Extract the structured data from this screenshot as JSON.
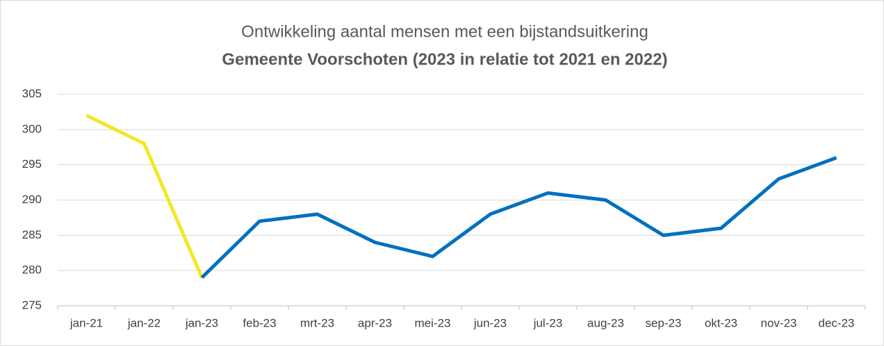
{
  "chart_data": {
    "type": "line",
    "title": "Ontwikkeling aantal mensen met een bijstandsuitkering",
    "subtitle": "Gemeente Voorschoten (2023 in relatie tot 2021 en 2022)",
    "categories": [
      "jan-21",
      "jan-22",
      "jan-23",
      "feb-23",
      "mrt-23",
      "apr-23",
      "mei-23",
      "jun-23",
      "jul-23",
      "aug-23",
      "sep-23",
      "okt-23",
      "nov-23",
      "dec-23"
    ],
    "series": [
      {
        "color": "#f2e825",
        "values": [
          302,
          298,
          279,
          null,
          null,
          null,
          null,
          null,
          null,
          null,
          null,
          null,
          null,
          null
        ]
      },
      {
        "color": "#0070c0",
        "values": [
          null,
          null,
          279,
          287,
          288,
          284,
          282,
          288,
          291,
          290,
          285,
          286,
          293,
          296
        ]
      }
    ],
    "ylim": [
      275,
      305
    ],
    "yticks": [
      275,
      280,
      285,
      290,
      295,
      300,
      305
    ],
    "grid": true
  }
}
